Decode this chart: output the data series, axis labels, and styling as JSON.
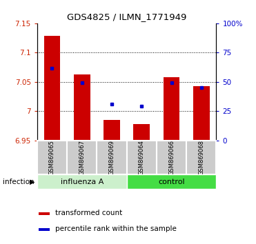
{
  "title": "GDS4825 / ILMN_1771949",
  "samples": [
    "GSM869065",
    "GSM869067",
    "GSM869069",
    "GSM869064",
    "GSM869066",
    "GSM869068"
  ],
  "group_labels": [
    "influenza A",
    "control"
  ],
  "bar_values": [
    7.128,
    7.062,
    6.985,
    6.978,
    7.058,
    7.043
  ],
  "bar_baseline": 6.95,
  "dot_values": [
    7.073,
    7.048,
    7.012,
    7.008,
    7.048,
    7.04
  ],
  "ylim_left": [
    6.95,
    7.15
  ],
  "ylim_right": [
    0,
    100
  ],
  "yticks_left": [
    6.95,
    7.0,
    7.05,
    7.1,
    7.15
  ],
  "ytick_labels_left": [
    "6.95",
    "7",
    "7.05",
    "7.1",
    "7.15"
  ],
  "yticks_right": [
    0,
    25,
    50,
    75,
    100
  ],
  "ytick_labels_right": [
    "0",
    "25",
    "50",
    "75",
    "100%"
  ],
  "grid_yticks": [
    7.0,
    7.05,
    7.1
  ],
  "bar_color": "#cc0000",
  "dot_color": "#0000cc",
  "tick_label_color_left": "#cc2200",
  "tick_label_color_right": "#0000cc",
  "influenza_color": "#ccf0cc",
  "control_color": "#44dd44",
  "sample_box_color": "#cccccc",
  "infection_label": "infection",
  "legend_bar_label": "transformed count",
  "legend_dot_label": "percentile rank within the sample",
  "n_influenza": 3,
  "n_control": 3
}
